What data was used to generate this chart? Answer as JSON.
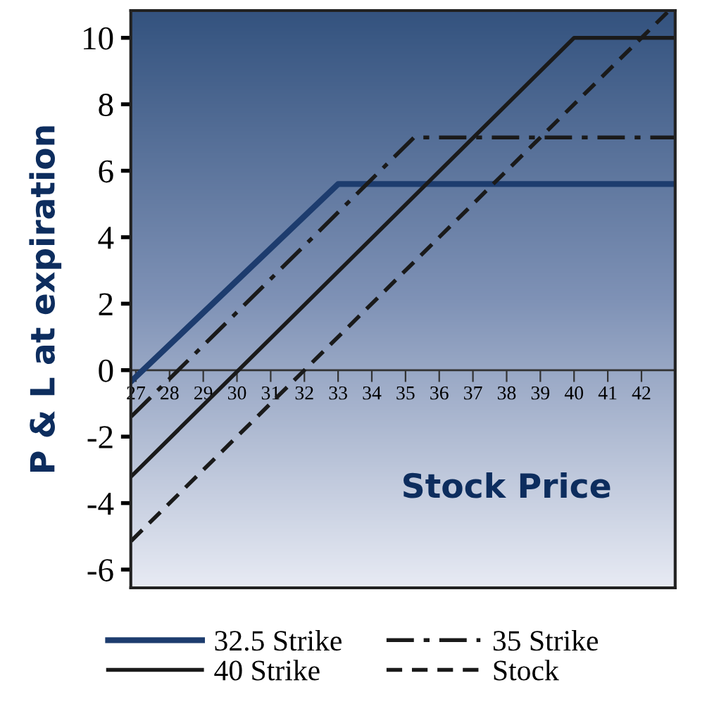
{
  "chart_data": {
    "type": "line",
    "xlabel": "Stock Price",
    "ylabel": "P & L at expiration",
    "xlim": [
      26.85,
      43
    ],
    "ylim": [
      -6.55,
      10.82
    ],
    "xticks": [
      27,
      28,
      29,
      30,
      31,
      32,
      33,
      34,
      35,
      36,
      37,
      38,
      39,
      40,
      41,
      42
    ],
    "yticks": [
      -6,
      -4,
      -2,
      0,
      2,
      4,
      6,
      8,
      10
    ],
    "series": [
      {
        "name": "32.5 Strike",
        "color": "#1d3c6e",
        "line_style": "solid",
        "x": [
          26.9,
          33.0,
          43
        ],
        "values": [
          -0.3,
          5.6,
          5.6
        ]
      },
      {
        "name": "35 Strike",
        "color": "#1a1a1a",
        "line_style": "dashdot",
        "x": [
          26.86,
          35.25,
          43
        ],
        "values": [
          -1.4,
          7,
          7
        ]
      },
      {
        "name": "40 Strike",
        "color": "#1a1a1a",
        "line_style": "solid",
        "x": [
          26.86,
          40,
          43
        ],
        "values": [
          -3.2,
          10,
          10
        ]
      },
      {
        "name": "Stock",
        "color": "#1a1a1a",
        "line_style": "dashed",
        "x": [
          26.86,
          42.8
        ],
        "values": [
          -5.14,
          10.8
        ]
      }
    ],
    "grid": false,
    "legend": "bottom"
  }
}
